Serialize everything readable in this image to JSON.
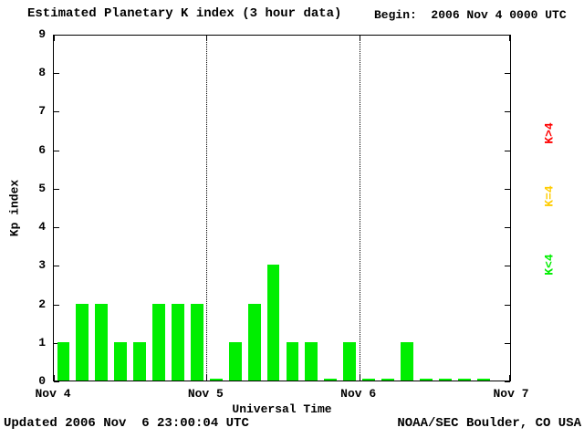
{
  "chart_data": {
    "type": "bar",
    "title": "Estimated Planetary K index (3 hour data)",
    "begin_label": "Begin:  2006 Nov 4 0000 UTC",
    "xlabel": "Universal Time",
    "ylabel": "Kp index",
    "ylim": [
      0,
      9
    ],
    "y_ticks": [
      0,
      1,
      2,
      3,
      4,
      5,
      6,
      7,
      8,
      9
    ],
    "x_tick_labels": [
      "Nov 4",
      "Nov 5",
      "Nov 6",
      "Nov 7"
    ],
    "slots_per_day": 8,
    "bar_color": "#00ee00",
    "days": [
      {
        "date": "Nov 4",
        "values": [
          1,
          2,
          2,
          1,
          1,
          2,
          2,
          2
        ]
      },
      {
        "date": "Nov 5",
        "values": [
          0,
          1,
          2,
          3,
          1,
          1,
          0,
          1
        ]
      },
      {
        "date": "Nov 6",
        "values": [
          0,
          0,
          1,
          0,
          0,
          0,
          0
        ]
      }
    ],
    "legend": [
      {
        "label": "K>4",
        "color": "#ff0000"
      },
      {
        "label": "K=4",
        "color": "#ffcc00"
      },
      {
        "label": "K<4",
        "color": "#00ee00"
      }
    ],
    "updated": "Updated 2006 Nov  6 23:00:04 UTC",
    "credit": "NOAA/SEC Boulder, CO USA"
  }
}
